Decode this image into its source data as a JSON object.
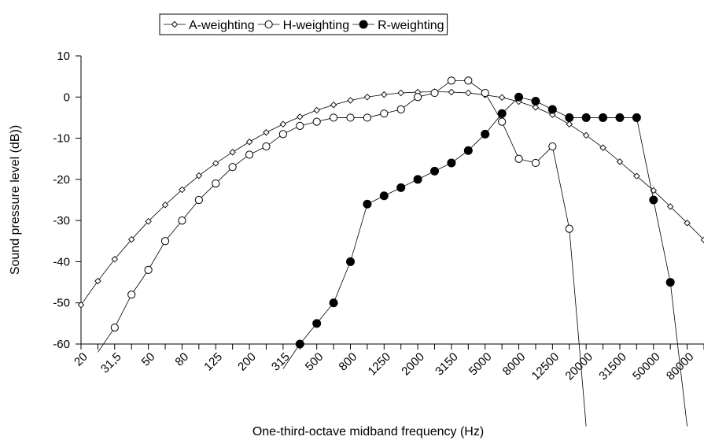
{
  "chart_data": {
    "type": "line",
    "xlabel": "One-third-octave midband frequency (Hz)",
    "ylabel": "Sound pressure level (dB))",
    "legend": "top",
    "grid": false,
    "ylim": [
      -60,
      10
    ],
    "yticks": [
      10,
      0,
      -10,
      -20,
      -30,
      -40,
      -50,
      -60
    ],
    "categories": [
      "20",
      null,
      {
        "value": 31.5,
        "label": "31,5"
      },
      null,
      "50",
      null,
      "80",
      null,
      "125",
      null,
      "200",
      null,
      "315",
      null,
      "500",
      null,
      "800",
      null,
      "1250",
      null,
      "2000",
      null,
      "3150",
      null,
      "5000",
      null,
      "8000",
      null,
      "12500",
      null,
      "20000",
      null,
      "31500",
      null,
      "50000",
      null,
      "80000",
      null
    ],
    "series": [
      {
        "name": "A-weighting",
        "color": "#000000",
        "marker": "open-diamond",
        "values": [
          -50.5,
          -44.7,
          -39.4,
          -34.6,
          -30.2,
          -26.2,
          -22.5,
          -19.1,
          -16.1,
          -13.4,
          -10.9,
          -8.6,
          -6.6,
          -4.8,
          -3.2,
          -1.9,
          -0.8,
          0,
          0.6,
          1.0,
          1.2,
          1.3,
          1.2,
          1.0,
          0.5,
          -0.1,
          -1.1,
          -2.5,
          -4.3,
          -6.6,
          -9.3,
          -12.3,
          -15.7,
          -19.2,
          -22.7,
          -26.6,
          -30.6,
          -34.7
        ]
      },
      {
        "name": "H-weighting",
        "color": "#000000",
        "marker": "open-circle",
        "values": [
          null,
          -62,
          -56,
          -48,
          -42,
          -35,
          -30,
          -25,
          -21,
          -17,
          -14,
          -12,
          -9,
          -7,
          -6,
          -5,
          -5,
          -5,
          -4,
          -3,
          0,
          1,
          4,
          4,
          1,
          -6,
          -15,
          -16,
          -12,
          -32,
          -80,
          null,
          null,
          null,
          null,
          null,
          null,
          null
        ]
      },
      {
        "name": "R-weighting",
        "color": "#000000",
        "marker": "filled-circle",
        "values": [
          null,
          null,
          null,
          null,
          null,
          null,
          null,
          null,
          null,
          null,
          null,
          null,
          -66,
          -60,
          -55,
          -50,
          -40,
          -26,
          -24,
          -22,
          -20,
          -18,
          -16,
          -13,
          -9,
          -4,
          0,
          -1,
          -3,
          -5,
          -5,
          -5,
          -5,
          -5,
          -25,
          -45,
          -80,
          null
        ]
      }
    ]
  }
}
